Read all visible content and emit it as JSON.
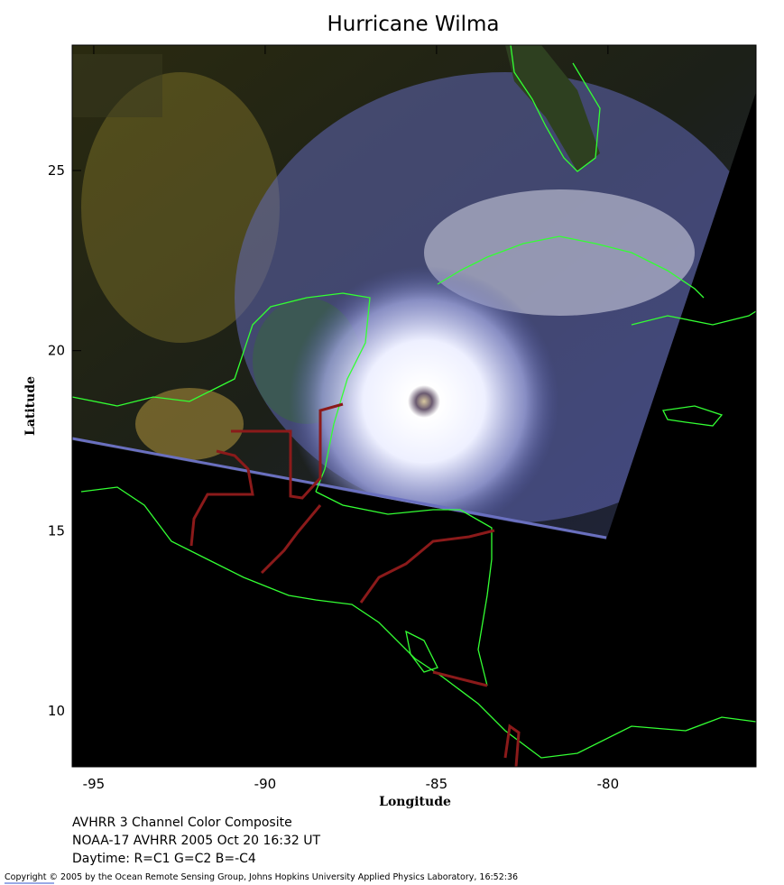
{
  "title": "Hurricane Wilma",
  "x_axis": {
    "label": "Longitude",
    "lim": [
      -95.63,
      -75.68
    ],
    "ticks": [
      -95,
      -90,
      -85,
      -80
    ]
  },
  "y_axis": {
    "label": "Latitude",
    "lim": [
      8.45,
      28.48
    ],
    "ticks": [
      10,
      15,
      20,
      25
    ]
  },
  "caption": [
    "AVHRR 3 Channel Color Composite",
    "NOAA-17 AVHRR 2005 Oct 20 16:32 UT",
    "Daytime: R=C1 G=C2 B=-C4"
  ],
  "copyright": "Copyright © 2005 by the Ocean Remote Sensing Group, Johns Hopkins University Applied Physics Laboratory, 16:52:36"
}
